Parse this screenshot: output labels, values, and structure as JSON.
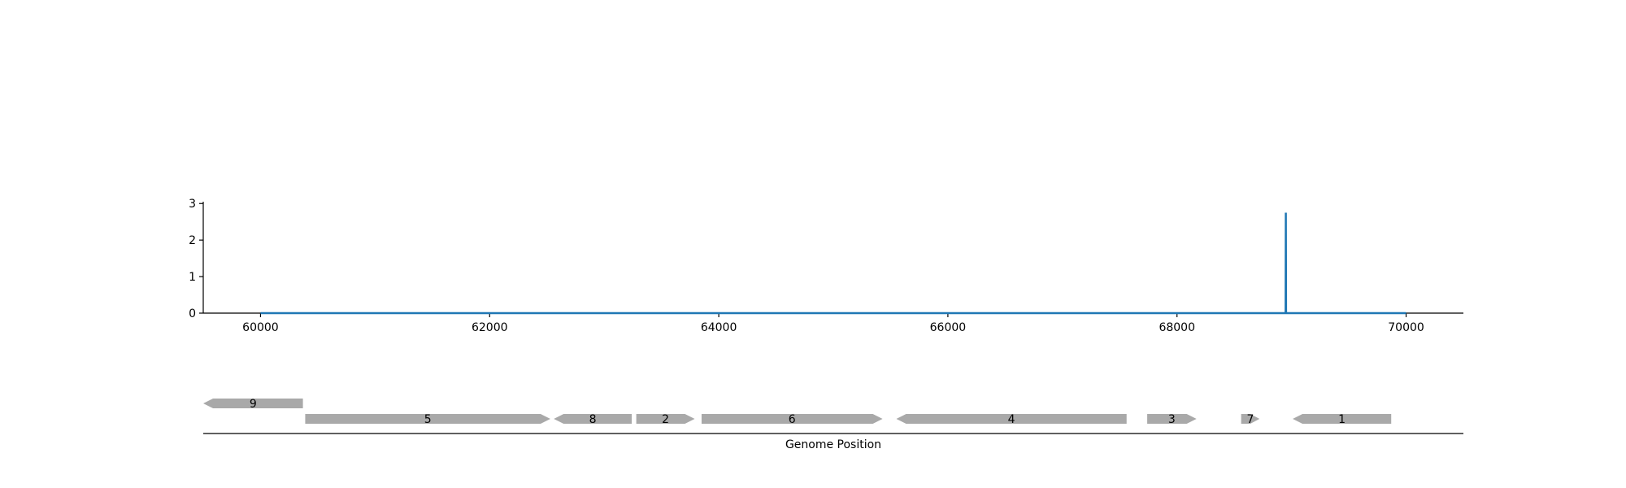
{
  "colors": {
    "signal": "#1f77b4",
    "gene": "#a9a9a9",
    "axis": "#000000"
  },
  "chart_data": [
    {
      "type": "line",
      "title": "",
      "xlabel": "",
      "ylabel": "",
      "xlim": [
        59500,
        70500
      ],
      "ylim": [
        0,
        3.05
      ],
      "grid": false,
      "x_ticks": [
        60000,
        62000,
        64000,
        66000,
        68000,
        70000
      ],
      "x_tick_labels": [
        "60000",
        "62000",
        "64000",
        "66000",
        "68000",
        "70000"
      ],
      "y_ticks": [
        0,
        1,
        2,
        3
      ],
      "y_tick_labels": [
        "0",
        "1",
        "2",
        "3"
      ],
      "series": [
        {
          "x": [
            60000,
            68948,
            68950,
            68952,
            70000
          ],
          "values": [
            0,
            0,
            2.75,
            0,
            0
          ]
        }
      ]
    },
    {
      "type": "gene-track",
      "xlabel": "Genome Position",
      "xlim": [
        59500,
        70500
      ],
      "genes": [
        {
          "label": "9",
          "start": 59500,
          "end": 60370,
          "strand": "-",
          "row": 1
        },
        {
          "label": "5",
          "start": 60390,
          "end": 62530,
          "strand": "+",
          "row": 0
        },
        {
          "label": "8",
          "start": 62560,
          "end": 63240,
          "strand": "-",
          "row": 0
        },
        {
          "label": "2",
          "start": 63280,
          "end": 63790,
          "strand": "+",
          "row": 0
        },
        {
          "label": "6",
          "start": 63850,
          "end": 65430,
          "strand": "+",
          "row": 0
        },
        {
          "label": "4",
          "start": 65550,
          "end": 67560,
          "strand": "-",
          "row": 0
        },
        {
          "label": "3",
          "start": 67740,
          "end": 68170,
          "strand": "+",
          "row": 0
        },
        {
          "label": "7",
          "start": 68560,
          "end": 68720,
          "strand": "+",
          "row": 0
        },
        {
          "label": "1",
          "start": 69010,
          "end": 69870,
          "strand": "-",
          "row": 0
        }
      ]
    }
  ]
}
